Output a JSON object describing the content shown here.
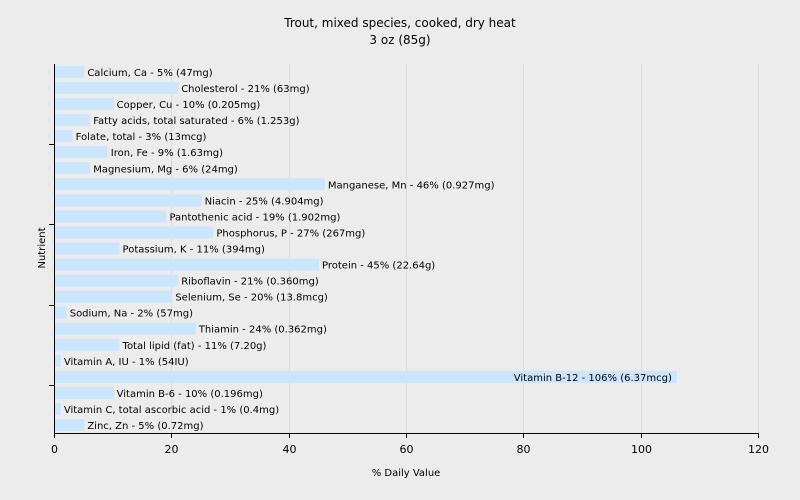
{
  "chart_data": {
    "type": "bar",
    "orientation": "horizontal",
    "title": "Trout, mixed species, cooked, dry heat",
    "subtitle": "3 oz (85g)",
    "xlabel": "% Daily Value",
    "ylabel": "Nutrient",
    "xlim": [
      0,
      120
    ],
    "xticks": [
      0,
      20,
      40,
      60,
      80,
      100,
      120
    ],
    "grid": true,
    "bar_color": "#cce5ff",
    "background_color": "#ececec",
    "categories": [
      "Calcium, Ca",
      "Cholesterol",
      "Copper, Cu",
      "Fatty acids, total saturated",
      "Folate, total",
      "Iron, Fe",
      "Magnesium, Mg",
      "Manganese, Mn",
      "Niacin",
      "Pantothenic acid",
      "Phosphorus, P",
      "Potassium, K",
      "Protein",
      "Riboflavin",
      "Selenium, Se",
      "Sodium, Na",
      "Thiamin",
      "Total lipid (fat)",
      "Vitamin A, IU",
      "Vitamin B-12",
      "Vitamin B-6",
      "Vitamin C, total ascorbic acid",
      "Zinc, Zn"
    ],
    "values": [
      5,
      21,
      10,
      6,
      3,
      9,
      6,
      46,
      25,
      19,
      27,
      11,
      45,
      21,
      20,
      2,
      24,
      11,
      1,
      106,
      10,
      1,
      5
    ],
    "labels": [
      "Calcium, Ca - 5% (47mg)",
      "Cholesterol - 21% (63mg)",
      "Copper, Cu - 10% (0.205mg)",
      "Fatty acids, total saturated - 6% (1.253g)",
      "Folate, total - 3% (13mcg)",
      "Iron, Fe - 9% (1.63mg)",
      "Magnesium, Mg - 6% (24mg)",
      "Manganese, Mn - 46% (0.927mg)",
      "Niacin - 25% (4.904mg)",
      "Pantothenic acid - 19% (1.902mg)",
      "Phosphorus, P - 27% (267mg)",
      "Potassium, K - 11% (394mg)",
      "Protein - 45% (22.64g)",
      "Riboflavin - 21% (0.360mg)",
      "Selenium, Se - 20% (13.8mcg)",
      "Sodium, Na - 2% (57mg)",
      "Thiamin - 24% (0.362mg)",
      "Total lipid (fat) - 11% (7.20g)",
      "Vitamin A, IU - 1% (54IU)",
      "Vitamin B-12 - 106% (6.37mcg)",
      "Vitamin B-6 - 10% (0.196mg)",
      "Vitamin C, total ascorbic acid - 1% (0.4mg)",
      "Zinc, Zn - 5% (0.72mg)"
    ]
  }
}
